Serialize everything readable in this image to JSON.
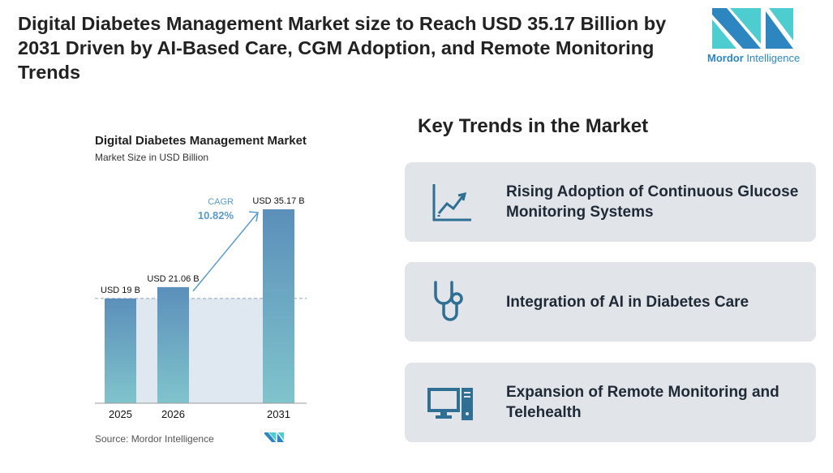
{
  "title": "Digital Diabetes Management Market size to Reach USD 35.17 Billion by 2031 Driven by AI-Based Care, CGM Adoption, and Remote Monitoring Trends",
  "logo": {
    "text_bold": "Mordor",
    "text_rest": "Intelligence",
    "colors": [
      "#2e86c1",
      "#4ecdd0"
    ]
  },
  "chart_data": {
    "type": "bar",
    "title": "Digital Diabetes Management Market",
    "subtitle": "Market Size in USD Billion",
    "categories": [
      "2025",
      "2026",
      "2031"
    ],
    "values": [
      19,
      21.06,
      35.17
    ],
    "data_labels": [
      "USD 19 B",
      "USD 21.06 B",
      "USD 35.17 B"
    ],
    "annotation": {
      "label": "CAGR",
      "value": "10.82%"
    },
    "source": "Source: Mordor Intelligence",
    "colors": {
      "bar_top": "#5b8fba",
      "bar_bottom": "#80c4cc",
      "band": "#dfe8f1",
      "accent": "#5b9bc8"
    }
  },
  "trends": {
    "heading": "Key Trends in the Market",
    "items": [
      {
        "icon": "line-chart-growth-icon",
        "label": "Rising Adoption of Continuous Glucose Monitoring Systems"
      },
      {
        "icon": "stethoscope-icon",
        "label": "Integration of AI in Diabetes Care"
      },
      {
        "icon": "desktop-computer-icon",
        "label": "Expansion of Remote Monitoring and Telehealth"
      }
    ]
  }
}
